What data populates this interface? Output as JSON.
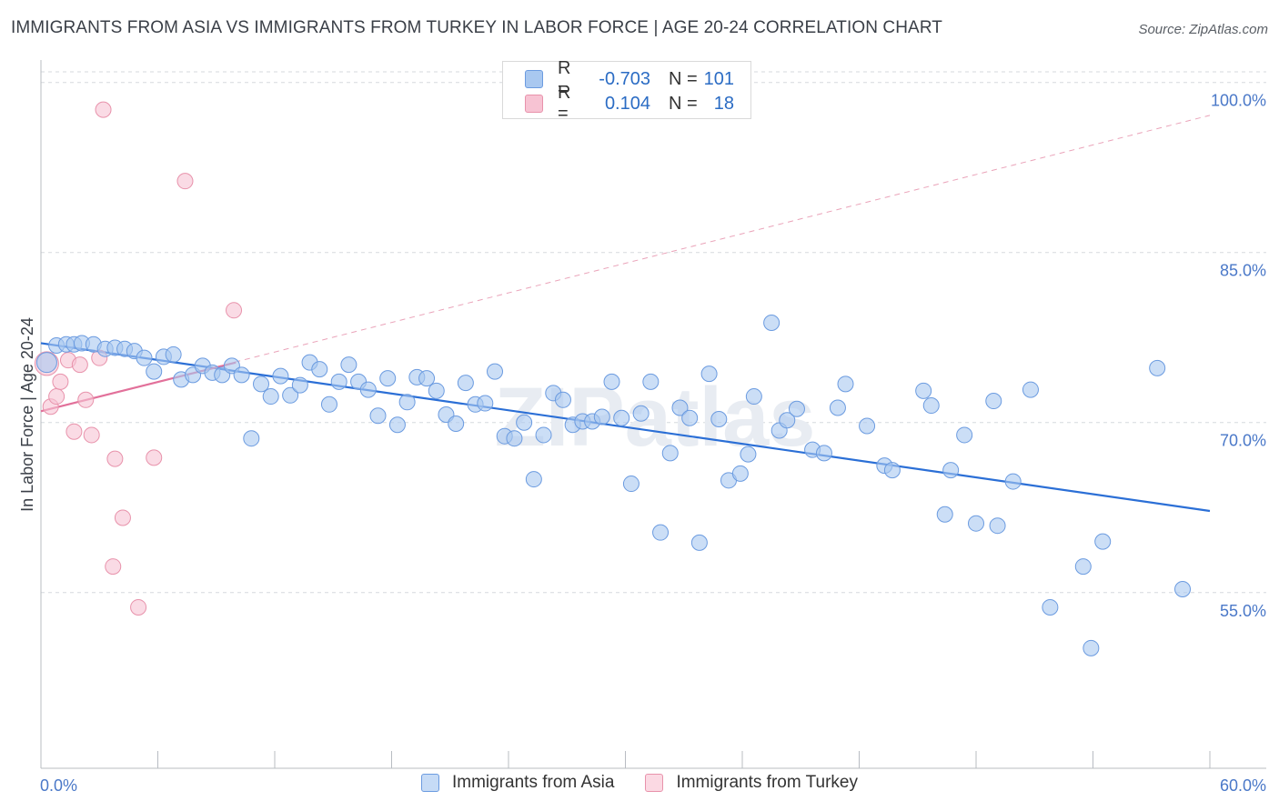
{
  "header": {
    "title": "IMMIGRANTS FROM ASIA VS IMMIGRANTS FROM TURKEY IN LABOR FORCE | AGE 20-24 CORRELATION CHART",
    "source": "Source: ZipAtlas.com"
  },
  "watermark": "ZIPatlas",
  "legend": {
    "r_label": "R =",
    "n_label": "N =",
    "rows": [
      {
        "r": "-0.703",
        "n": "101",
        "color": "#a9c8f0",
        "border": "#6b9be0"
      },
      {
        "r": "0.104",
        "n": "18",
        "color": "#f7c3d3",
        "border": "#e892ab"
      }
    ]
  },
  "bottom_legend": [
    "Immigrants from Asia",
    "Immigrants from Turkey"
  ],
  "chart_data": {
    "type": "scatter",
    "title": "IMMIGRANTS FROM ASIA VS IMMIGRANTS FROM TURKEY IN LABOR FORCE | AGE 20-24 CORRELATION CHART",
    "xlabel": "",
    "ylabel": "In Labor Force | Age 20-24",
    "xlim": [
      0,
      60
    ],
    "ylim": [
      39.5,
      101.5
    ],
    "x_tick_labels": [
      "0.0%",
      "60.0%"
    ],
    "y_ticks": [
      55,
      70,
      85,
      100
    ],
    "y_tick_labels": [
      "55.0%",
      "70.0%",
      "85.0%",
      "100.0%"
    ],
    "grid": "horizontal dashed",
    "legend_position": "top-center",
    "colors": {
      "asia": "#a9c8f0",
      "asia_stroke": "#6b9be0",
      "asia_line": "#2b6fd6",
      "turkey": "#f7c3d3",
      "turkey_stroke": "#e892ab",
      "turkey_line": "#e2709a"
    },
    "series": [
      {
        "name": "Immigrants from Asia",
        "trend": {
          "x": [
            0,
            60
          ],
          "y": [
            77.0,
            62.2
          ]
        },
        "points": [
          [
            0.3,
            75.3
          ],
          [
            0.8,
            76.8
          ],
          [
            1.3,
            76.9
          ],
          [
            1.7,
            76.9
          ],
          [
            2.1,
            77.0
          ],
          [
            2.7,
            76.9
          ],
          [
            3.3,
            76.5
          ],
          [
            3.8,
            76.6
          ],
          [
            4.3,
            76.5
          ],
          [
            4.8,
            76.3
          ],
          [
            5.3,
            75.7
          ],
          [
            5.8,
            74.5
          ],
          [
            6.3,
            75.8
          ],
          [
            6.8,
            76.0
          ],
          [
            7.2,
            73.8
          ],
          [
            7.8,
            74.2
          ],
          [
            8.3,
            75.0
          ],
          [
            8.8,
            74.4
          ],
          [
            9.3,
            74.2
          ],
          [
            9.8,
            75.0
          ],
          [
            10.3,
            74.2
          ],
          [
            10.8,
            68.6
          ],
          [
            11.3,
            73.4
          ],
          [
            11.8,
            72.3
          ],
          [
            12.3,
            74.1
          ],
          [
            12.8,
            72.4
          ],
          [
            13.3,
            73.3
          ],
          [
            13.8,
            75.3
          ],
          [
            14.3,
            74.7
          ],
          [
            14.8,
            71.6
          ],
          [
            15.3,
            73.6
          ],
          [
            15.8,
            75.1
          ],
          [
            16.3,
            73.6
          ],
          [
            16.8,
            72.9
          ],
          [
            17.3,
            70.6
          ],
          [
            17.8,
            73.9
          ],
          [
            18.3,
            69.8
          ],
          [
            18.8,
            71.8
          ],
          [
            19.3,
            74.0
          ],
          [
            19.8,
            73.9
          ],
          [
            20.3,
            72.8
          ],
          [
            20.8,
            70.7
          ],
          [
            21.3,
            69.9
          ],
          [
            21.8,
            73.5
          ],
          [
            22.3,
            71.6
          ],
          [
            22.8,
            71.7
          ],
          [
            23.3,
            74.5
          ],
          [
            23.8,
            68.8
          ],
          [
            24.3,
            68.6
          ],
          [
            24.8,
            70.0
          ],
          [
            25.3,
            65.0
          ],
          [
            25.8,
            68.9
          ],
          [
            26.3,
            72.6
          ],
          [
            26.8,
            72.0
          ],
          [
            27.3,
            69.8
          ],
          [
            27.8,
            70.1
          ],
          [
            28.3,
            70.1
          ],
          [
            28.8,
            70.5
          ],
          [
            29.3,
            73.6
          ],
          [
            29.8,
            70.4
          ],
          [
            30.3,
            64.6
          ],
          [
            30.8,
            70.8
          ],
          [
            31.3,
            73.6
          ],
          [
            31.8,
            60.3
          ],
          [
            32.3,
            67.3
          ],
          [
            32.8,
            71.3
          ],
          [
            33.3,
            70.4
          ],
          [
            33.8,
            59.4
          ],
          [
            34.3,
            74.3
          ],
          [
            34.8,
            70.3
          ],
          [
            35.3,
            64.9
          ],
          [
            35.9,
            65.5
          ],
          [
            36.3,
            67.2
          ],
          [
            36.6,
            72.3
          ],
          [
            37.5,
            78.8
          ],
          [
            37.9,
            69.3
          ],
          [
            38.3,
            70.2
          ],
          [
            38.8,
            71.2
          ],
          [
            39.6,
            67.6
          ],
          [
            40.2,
            67.3
          ],
          [
            40.9,
            71.3
          ],
          [
            41.3,
            73.4
          ],
          [
            42.4,
            69.7
          ],
          [
            43.3,
            66.2
          ],
          [
            43.7,
            65.8
          ],
          [
            45.3,
            72.8
          ],
          [
            45.7,
            71.5
          ],
          [
            46.4,
            61.9
          ],
          [
            46.7,
            65.8
          ],
          [
            47.4,
            68.9
          ],
          [
            48.0,
            61.1
          ],
          [
            48.9,
            71.9
          ],
          [
            49.1,
            60.9
          ],
          [
            49.9,
            64.8
          ],
          [
            50.8,
            72.9
          ],
          [
            51.8,
            53.7
          ],
          [
            53.5,
            57.3
          ],
          [
            53.9,
            50.1
          ],
          [
            54.5,
            59.5
          ],
          [
            57.3,
            74.8
          ],
          [
            58.6,
            55.3
          ]
        ]
      },
      {
        "name": "Immigrants from Turkey",
        "trend": {
          "x": [
            0,
            10
          ],
          "y": [
            71.0,
            75.3
          ]
        },
        "trend_extended": {
          "x": [
            0,
            60
          ],
          "y": [
            71.0,
            97.1
          ]
        },
        "points": [
          [
            0.3,
            75.2
          ],
          [
            0.5,
            71.4
          ],
          [
            0.8,
            72.3
          ],
          [
            1.0,
            73.6
          ],
          [
            1.4,
            75.5
          ],
          [
            1.7,
            69.2
          ],
          [
            2.0,
            75.1
          ],
          [
            2.3,
            72.0
          ],
          [
            2.6,
            68.9
          ],
          [
            3.0,
            75.7
          ],
          [
            3.2,
            97.6
          ],
          [
            3.7,
            57.3
          ],
          [
            3.8,
            66.8
          ],
          [
            4.2,
            61.6
          ],
          [
            5.0,
            53.7
          ],
          [
            5.8,
            66.9
          ],
          [
            7.4,
            91.3
          ],
          [
            9.9,
            79.9
          ]
        ]
      }
    ]
  }
}
